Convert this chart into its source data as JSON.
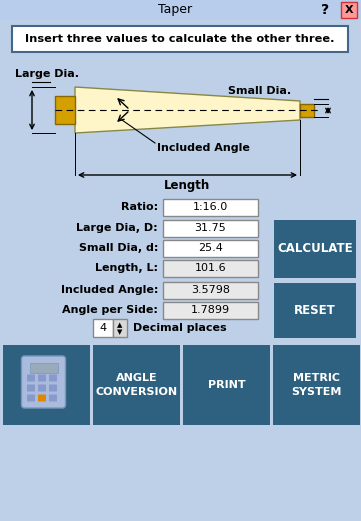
{
  "title": "Taper",
  "bg_color": "#bdd0e8",
  "dark_btn_color": "#2e6080",
  "instruction_text": "Insert three values to calculate the other three.",
  "fields": [
    {
      "label": "Ratio:",
      "value": "1:16.0",
      "bg": "#ffffff"
    },
    {
      "label": "Large Dia, D:",
      "value": "31.75",
      "bg": "#ffffff"
    },
    {
      "label": "Small Dia, d:",
      "value": "25.4",
      "bg": "#ffffff"
    },
    {
      "label": "Length, L:",
      "value": "101.6",
      "bg": "#e8e8e8"
    },
    {
      "label": "Included Angle:",
      "value": "3.5798",
      "bg": "#e8e8e8"
    },
    {
      "label": "Angle per Side:",
      "value": "1.7899",
      "bg": "#e8e8e8"
    }
  ],
  "decimal_label": "Decimal places",
  "decimal_value": "4",
  "bottom_buttons": [
    "ANGLE\nCONVERSION",
    "PRINT",
    "METRIC\nSYSTEM"
  ],
  "right_buttons": [
    "CALCULATE",
    "RESET"
  ],
  "input_bg": "#ffffff",
  "large_dia_label": "Large Dia.",
  "small_dia_label": "Small Dia.",
  "included_angle_label": "Included Angle",
  "length_label": "Length",
  "pin_color": "#fef5c8",
  "pin_edge": "#888844",
  "flange_color": "#d4a000",
  "flange_edge": "#886600"
}
